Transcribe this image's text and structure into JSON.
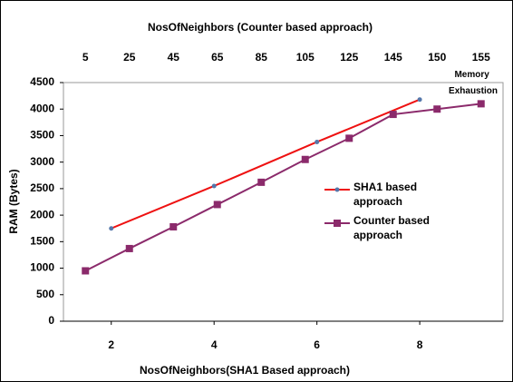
{
  "chart_data": {
    "type": "line",
    "x_label": "NosOfNeighbors(SHA1 Based approach)",
    "x2_label": "NosOfNeighbors (Counter based approach)",
    "y_label": "RAM (Bytes)",
    "annotation": "Memory Exhaustion",
    "xlim": [
      1.07,
      9.62
    ],
    "xticks": [
      2,
      4,
      6,
      8
    ],
    "x2_categories": [
      "5",
      "25",
      "45",
      "65",
      "85",
      "105",
      "125",
      "145",
      "150",
      "155"
    ],
    "ylim": [
      0,
      4500
    ],
    "yticks": [
      0,
      500,
      1000,
      1500,
      2000,
      2500,
      3000,
      3500,
      4000,
      4500
    ],
    "series": [
      {
        "name": "SHA1 based approach",
        "color": "#ee1111",
        "marker_color": "#5577aa",
        "x": [
          2,
          4,
          6,
          8
        ],
        "values": [
          1750,
          2550,
          3380,
          4180
        ]
      },
      {
        "name": "Counter based approach",
        "color": "#8b2a6b",
        "values": [
          950,
          1370,
          1780,
          2200,
          2620,
          3050,
          3450,
          3900,
          4000,
          4100
        ]
      }
    ]
  }
}
